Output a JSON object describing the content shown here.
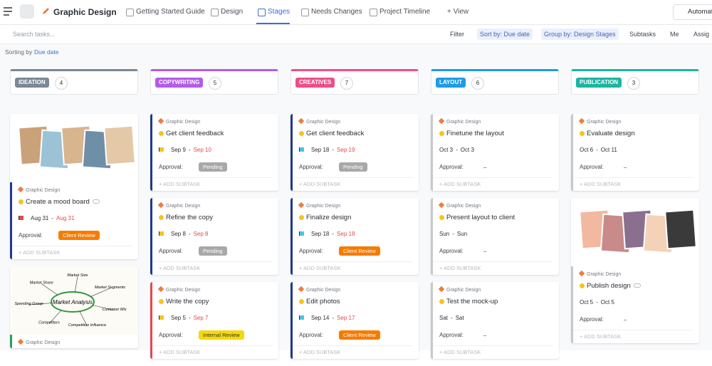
{
  "header": {
    "title": "Graphic Design",
    "tabs": [
      {
        "label": "Getting Started Guide"
      },
      {
        "label": "Design"
      },
      {
        "label": "Stages",
        "active": true
      },
      {
        "label": "Needs Changes"
      },
      {
        "label": "Project Timeline"
      }
    ],
    "add_view": "View",
    "automations": "Automat"
  },
  "toolbar": {
    "search": "Search tasks...",
    "filter": "Filter",
    "sort": "Sort by: Due date",
    "group": "Group by: Design Stages",
    "subtasks": "Subtasks",
    "me": "Me",
    "assignees": "Assig"
  },
  "sorting": {
    "label": "Sorting by",
    "value": "Due date"
  },
  "labels": {
    "approval": "Approval:",
    "add_subtask": "+ ADD SUBTASK",
    "date_sep": "-"
  },
  "columns": [
    {
      "name": "IDEATION",
      "count": 4,
      "color": "#7b8794",
      "cards": [
        {
          "cover_colors": [
            "#c9a27a",
            "#9cc3d5",
            "#d8b48f",
            "#6f8fa6",
            "#e3c9a8"
          ],
          "list": "Graphic Design",
          "title": "Create a mood board",
          "start": "Aug 31",
          "due": "Aug 31",
          "flag": "#e5484d",
          "due_color": "#e5484d",
          "approval": "Client Review",
          "approval_color": "#f57c00",
          "border": "#1e3a8a",
          "link": true
        },
        {
          "cover": {
            "title": "Market Analysis",
            "branches": [
              "Market Share",
              "Market Size",
              "Market Segments",
              "Customer Mix",
              "Competition Influence",
              "Competitors",
              "Spending Group"
            ]
          },
          "list": "Graphic Design",
          "border": "#22a35a"
        }
      ]
    },
    {
      "name": "COPYWRITING",
      "count": 5,
      "color": "#b45bea",
      "cards": [
        {
          "list": "Graphic Design",
          "title": "Get client feedback",
          "start": "Sep 9",
          "due": "Sep 10",
          "flag": "#f5c518",
          "due_color": "#e5484d",
          "approval": "Pending",
          "approval_color": "#a8a8a8",
          "border": "#1e3a8a"
        },
        {
          "list": "Graphic Design",
          "title": "Refine the copy",
          "start": "Sep 8",
          "due": "Sep 8",
          "flag": "#f5c518",
          "due_color": "#e5484d",
          "approval": "Pending",
          "approval_color": "#a8a8a8",
          "border": "#1e3a8a"
        },
        {
          "list": "Graphic Design",
          "title": "Write the copy",
          "start": "Sep 5",
          "due": "Sep 7",
          "flag": "#f5c518",
          "due_color": "#e5484d",
          "approval": "Internal Review",
          "approval_color": "#f5d90a",
          "border": "#e5484d"
        }
      ]
    },
    {
      "name": "CREATIVES",
      "count": 7,
      "color": "#ee4d8b",
      "cards": [
        {
          "list": "Graphic Design",
          "title": "Get client feedback",
          "start": "Sep 18",
          "due": "Sep 19",
          "flag": "#4cc3e0",
          "due_color": "#e5484d",
          "approval": "Pending",
          "approval_color": "#a8a8a8",
          "border": "#1e3a8a"
        },
        {
          "list": "Graphic Design",
          "title": "Finalize design",
          "start": "Sep 18",
          "due": "Sep 18",
          "flag": "#4cc3e0",
          "due_color": "#e5484d",
          "approval": "Client Review",
          "approval_color": "#f57c00",
          "border": "#1e3a8a"
        },
        {
          "list": "Graphic Design",
          "title": "Edit photos",
          "start": "Sep 14",
          "due": "Sep 17",
          "flag": "#4cc3e0",
          "due_color": "#e5484d",
          "approval": "Client Review",
          "approval_color": "#f57c00",
          "border": "#1e3a8a"
        }
      ]
    },
    {
      "name": "LAYOUT",
      "count": 6,
      "color": "#1e9be9",
      "cards": [
        {
          "list": "Graphic Design",
          "title": "Finetune the layout",
          "start": "Oct 3",
          "due": "Oct 3",
          "approval": "–",
          "border": "#c8c8c8"
        },
        {
          "list": "Graphic Design",
          "title": "Present layout to client",
          "start": "Sun",
          "due": "Sun",
          "approval": "–",
          "border": "#c8c8c8"
        },
        {
          "list": "Graphic Design",
          "title": "Test the mock-up",
          "start": "Sat",
          "due": "Sat",
          "approval": "–",
          "border": "#c8c8c8"
        }
      ]
    },
    {
      "name": "PUBLICATION",
      "count": 3,
      "color": "#1bb5a2",
      "cards": [
        {
          "list": "Graphic Design",
          "title": "Evaluate design",
          "start": "Oct 6",
          "due": "Oct 11",
          "approval": "–",
          "border": "#c8c8c8"
        },
        {
          "cover_colors": [
            "#f2b8a0",
            "#c98a8a",
            "#8a6f8f",
            "#f4d2b8",
            "#3a3a3a"
          ],
          "list": "Graphic Design",
          "title": "Publish design",
          "start": "Oct 5",
          "due": "Oct 5",
          "approval": "–",
          "border": "#c8c8c8",
          "link": true
        }
      ]
    }
  ]
}
